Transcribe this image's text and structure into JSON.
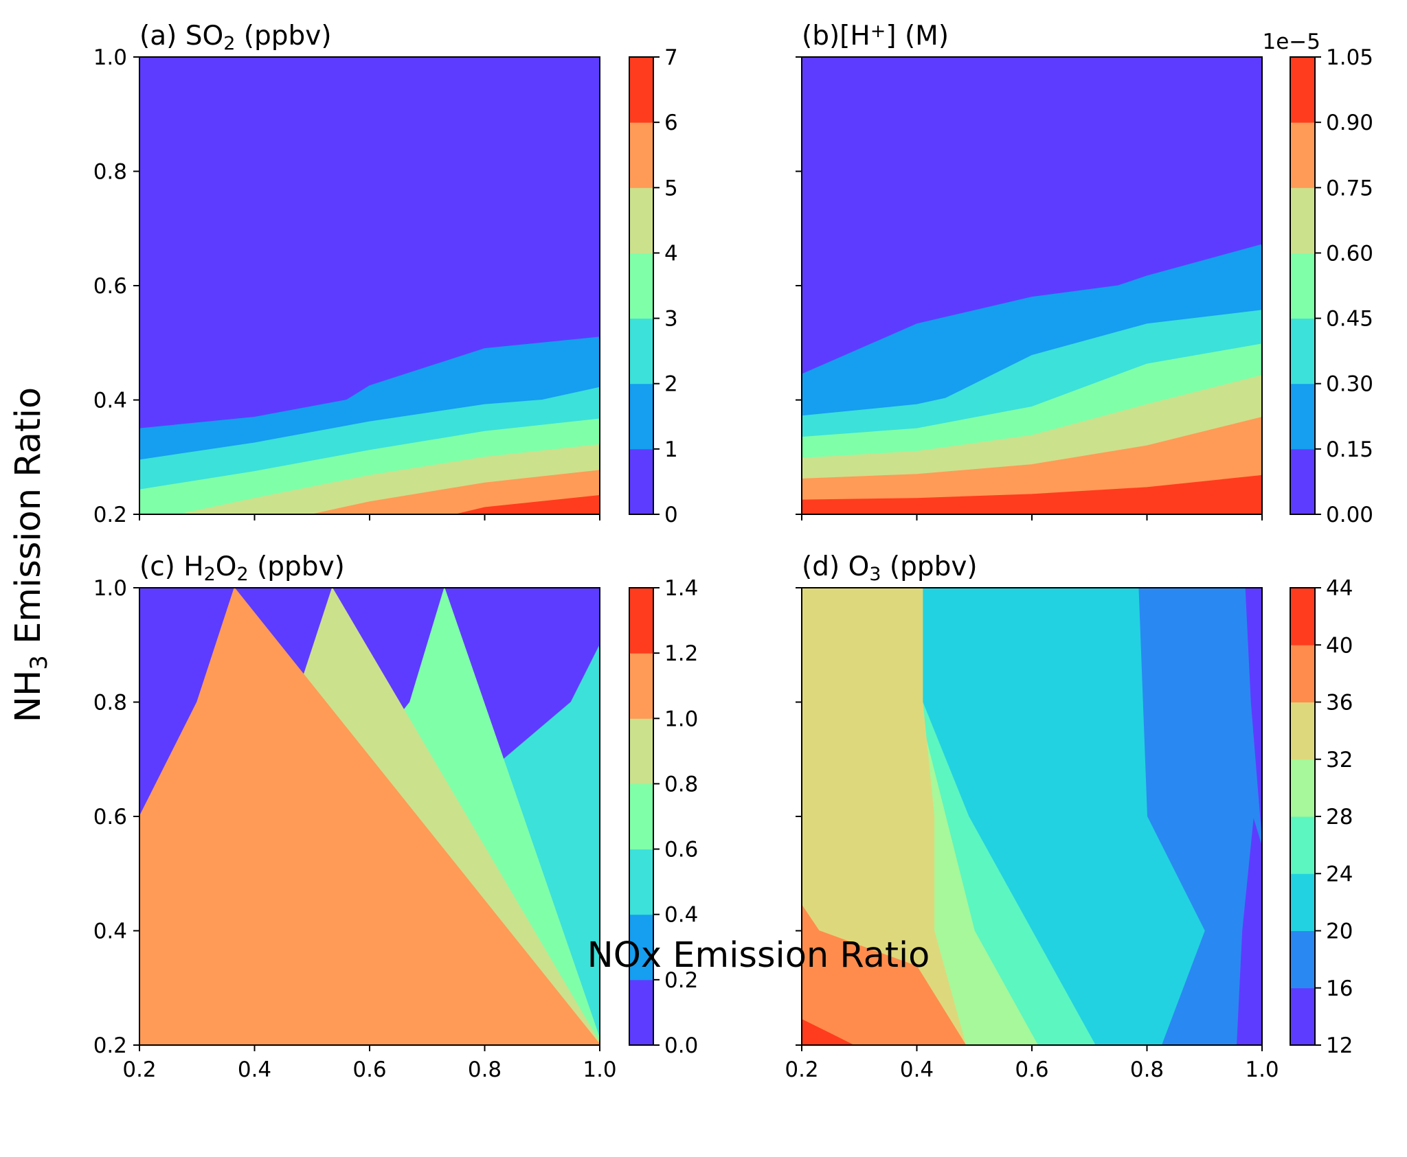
{
  "figure": {
    "xlabel": "NOx Emission Ratio",
    "ylabel_main": "NH",
    "ylabel_sub": "3",
    "ylabel_rest": " Emission Ratio"
  },
  "chart_data": [
    {
      "type": "contour",
      "panel_label": "(a)",
      "title_parts": [
        {
          "t": "(a) SO"
        },
        {
          "t": "2",
          "sub": true
        },
        {
          "t": " (ppbv)"
        }
      ],
      "xlim": [
        0.2,
        1.0
      ],
      "ylim": [
        0.2,
        1.0
      ],
      "xticks": [
        "0.2",
        "0.4",
        "0.6",
        "0.8",
        "1.0"
      ],
      "yticks": [
        "0.2",
        "0.4",
        "0.6",
        "0.8",
        "1.0"
      ],
      "show_xtick_labels": false,
      "show_ytick_labels": true,
      "levels": [
        0,
        1,
        2,
        3,
        4,
        5,
        6,
        7
      ],
      "level_labels": [
        "0",
        "1",
        "2",
        "3",
        "4",
        "5",
        "6",
        "7"
      ],
      "colors": [
        "#5e3cff",
        "#169ef0",
        "#3ce1d9",
        "#80ffa9",
        "#cce18c",
        "#ff9b57",
        "#ff3c1e"
      ],
      "boundaries": [
        [
          [
            0.2,
            0.35
          ],
          [
            0.4,
            0.37
          ],
          [
            0.56,
            0.4
          ],
          [
            0.6,
            0.425
          ],
          [
            0.8,
            0.49
          ],
          [
            1.0,
            0.51
          ]
        ],
        [
          [
            0.2,
            0.295
          ],
          [
            0.4,
            0.325
          ],
          [
            0.6,
            0.362
          ],
          [
            0.8,
            0.392
          ],
          [
            0.9,
            0.4
          ],
          [
            1.0,
            0.422
          ]
        ],
        [
          [
            0.2,
            0.243
          ],
          [
            0.4,
            0.275
          ],
          [
            0.6,
            0.312
          ],
          [
            0.8,
            0.345
          ],
          [
            1.0,
            0.367
          ]
        ],
        [
          [
            0.27,
            0.2
          ],
          [
            0.4,
            0.228
          ],
          [
            0.6,
            0.268
          ],
          [
            0.8,
            0.3
          ],
          [
            1.0,
            0.322
          ]
        ],
        [
          [
            0.5,
            0.2
          ],
          [
            0.6,
            0.222
          ],
          [
            0.8,
            0.255
          ],
          [
            1.0,
            0.277
          ]
        ],
        [
          [
            0.75,
            0.2
          ],
          [
            0.8,
            0.212
          ],
          [
            1.0,
            0.233
          ]
        ]
      ],
      "colorbar": {
        "offset_text": ""
      }
    },
    {
      "type": "contour",
      "panel_label": "(b)",
      "title_parts": [
        {
          "t": "(b)[H"
        },
        {
          "t": "+",
          "sup": true
        },
        {
          "t": "] (M)"
        }
      ],
      "xlim": [
        0.2,
        1.0
      ],
      "ylim": [
        0.2,
        1.0
      ],
      "xticks": [
        "0.2",
        "0.4",
        "0.6",
        "0.8",
        "1.0"
      ],
      "yticks": [
        "0.2",
        "0.4",
        "0.6",
        "0.8",
        "1.0"
      ],
      "show_xtick_labels": false,
      "show_ytick_labels": false,
      "levels": [
        0,
        0.15,
        0.3,
        0.45,
        0.6,
        0.75,
        0.9,
        1.05
      ],
      "level_labels": [
        "0.00",
        "0.15",
        "0.30",
        "0.45",
        "0.60",
        "0.75",
        "0.90",
        "1.05"
      ],
      "colors": [
        "#5e3cff",
        "#169ef0",
        "#3ce1d9",
        "#80ffa9",
        "#cce18c",
        "#ff9b57",
        "#ff3c1e"
      ],
      "boundaries": [
        [
          [
            0.2,
            0.445
          ],
          [
            0.4,
            0.533
          ],
          [
            0.6,
            0.58
          ],
          [
            0.75,
            0.6
          ],
          [
            0.8,
            0.617
          ],
          [
            1.0,
            0.672
          ]
        ],
        [
          [
            0.2,
            0.372
          ],
          [
            0.4,
            0.392
          ],
          [
            0.45,
            0.403
          ],
          [
            0.6,
            0.478
          ],
          [
            0.8,
            0.533
          ],
          [
            1.0,
            0.557
          ]
        ],
        [
          [
            0.2,
            0.335
          ],
          [
            0.4,
            0.35
          ],
          [
            0.6,
            0.388
          ],
          [
            0.8,
            0.463
          ],
          [
            1.0,
            0.498
          ]
        ],
        [
          [
            0.2,
            0.298
          ],
          [
            0.4,
            0.31
          ],
          [
            0.6,
            0.338
          ],
          [
            0.8,
            0.392
          ],
          [
            1.0,
            0.443
          ]
        ],
        [
          [
            0.2,
            0.262
          ],
          [
            0.4,
            0.27
          ],
          [
            0.6,
            0.287
          ],
          [
            0.8,
            0.32
          ],
          [
            1.0,
            0.37
          ]
        ],
        [
          [
            0.2,
            0.225
          ],
          [
            0.4,
            0.228
          ],
          [
            0.6,
            0.235
          ],
          [
            0.8,
            0.247
          ],
          [
            1.0,
            0.268
          ]
        ]
      ],
      "colorbar": {
        "offset_text": "1e−5"
      }
    },
    {
      "type": "contour",
      "panel_label": "(c)",
      "title_parts": [
        {
          "t": "(c) H"
        },
        {
          "t": "2",
          "sub": true
        },
        {
          "t": "O"
        },
        {
          "t": "2",
          "sub": true
        },
        {
          "t": " (ppbv)"
        }
      ],
      "xlim": [
        0.2,
        1.0
      ],
      "ylim": [
        0.2,
        1.0
      ],
      "xticks": [
        "0.2",
        "0.4",
        "0.6",
        "0.8",
        "1.0"
      ],
      "yticks": [
        "0.2",
        "0.4",
        "0.6",
        "0.8",
        "1.0"
      ],
      "show_xtick_labels": true,
      "show_ytick_labels": true,
      "levels": [
        0,
        0.2,
        0.4,
        0.6,
        0.8,
        1.0,
        1.2,
        1.4
      ],
      "level_labels": [
        "0.0",
        "0.2",
        "0.4",
        "0.6",
        "0.8",
        "1.0",
        "1.2",
        "1.4"
      ],
      "colors": [
        "#5e3cff",
        "#169ef0",
        "#3ce1d9",
        "#80ffa9",
        "#cce18c",
        "#ff9b57",
        "#ff3c1e"
      ],
      "boundaries": [
        [
          [
            0.2,
            0.255
          ],
          [
            0.3,
            0.31
          ],
          [
            0.4,
            0.36
          ],
          [
            0.47,
            0.4
          ],
          [
            0.6,
            0.447
          ],
          [
            0.8,
            0.5
          ],
          [
            1.0,
            0.567
          ]
        ],
        [
          [
            0.2,
            0.323
          ],
          [
            0.32,
            0.4
          ],
          [
            0.4,
            0.46
          ],
          [
            0.55,
            0.52
          ],
          [
            0.74,
            0.6
          ],
          [
            0.8,
            0.672
          ],
          [
            0.95,
            0.8
          ],
          [
            1.0,
            0.9
          ]
        ],
        [
          [
            0.2,
            0.392
          ],
          [
            0.4,
            0.538
          ],
          [
            0.53,
            0.6
          ],
          [
            0.6,
            0.71
          ],
          [
            0.67,
            0.8
          ],
          [
            0.73,
            1.0
          ]
        ],
        [
          [
            0.2,
            0.493
          ],
          [
            0.36,
            0.6
          ],
          [
            0.47,
            0.8
          ],
          [
            0.535,
            1.0
          ]
        ],
        [
          [
            0.2,
            0.6
          ],
          [
            0.3,
            0.8
          ],
          [
            0.365,
            1.0
          ]
        ]
      ],
      "colorbar": {
        "offset_text": ""
      }
    },
    {
      "type": "contour",
      "panel_label": "(d)",
      "title_parts": [
        {
          "t": "(d) O"
        },
        {
          "t": "3",
          "sub": true
        },
        {
          "t": " (ppbv)"
        }
      ],
      "xlim": [
        0.2,
        1.0
      ],
      "ylim": [
        0.2,
        1.0
      ],
      "xticks": [
        "0.2",
        "0.4",
        "0.6",
        "0.8",
        "1.0"
      ],
      "yticks": [
        "0.2",
        "0.4",
        "0.6",
        "0.8",
        "1.0"
      ],
      "show_xtick_labels": true,
      "show_ytick_labels": false,
      "levels": [
        12,
        16,
        20,
        24,
        28,
        32,
        36,
        40,
        44
      ],
      "level_labels": [
        "12",
        "16",
        "20",
        "24",
        "28",
        "32",
        "36",
        "40",
        "44"
      ],
      "colors": [
        "#5e3cff",
        "#2a88f2",
        "#22d2e0",
        "#5cf6c0",
        "#a6f89a",
        "#ded87c",
        "#ff8c4c",
        "#ff3c1e"
      ],
      "boundaries": [
        [
          [
            0.955,
            0.2
          ],
          [
            0.965,
            0.4
          ],
          [
            0.985,
            0.6
          ],
          [
            1.0,
            0.55
          ],
          [
            1.0,
            1.0
          ],
          [
            0.97,
            1.0
          ],
          [
            0.98,
            0.8
          ]
        ],
        [
          [
            0.825,
            0.2
          ],
          [
            0.9,
            0.4
          ],
          [
            0.8,
            0.6
          ],
          [
            0.785,
            1.0
          ]
        ],
        [
          [
            0.71,
            0.2
          ],
          [
            0.6,
            0.4
          ],
          [
            0.49,
            0.6
          ],
          [
            0.41,
            0.8
          ],
          [
            0.36,
            1.0
          ]
        ],
        [
          [
            0.61,
            0.2
          ],
          [
            0.5,
            0.4
          ],
          [
            0.45,
            0.6
          ],
          [
            0.4,
            0.8
          ],
          [
            0.33,
            1.0
          ]
        ],
        [
          [
            0.485,
            0.2
          ],
          [
            0.43,
            0.4
          ],
          [
            0.43,
            0.6
          ],
          [
            0.41,
            0.8
          ],
          [
            0.41,
            1.0
          ]
        ],
        [
          [
            0.2,
            0.445
          ],
          [
            0.23,
            0.4
          ],
          [
            0.4,
            0.338
          ],
          [
            0.485,
            0.2
          ]
        ],
        [
          [
            0.2,
            0.245
          ],
          [
            0.25,
            0.22
          ],
          [
            0.29,
            0.2
          ]
        ]
      ],
      "colorbar": {
        "offset_text": ""
      }
    }
  ]
}
